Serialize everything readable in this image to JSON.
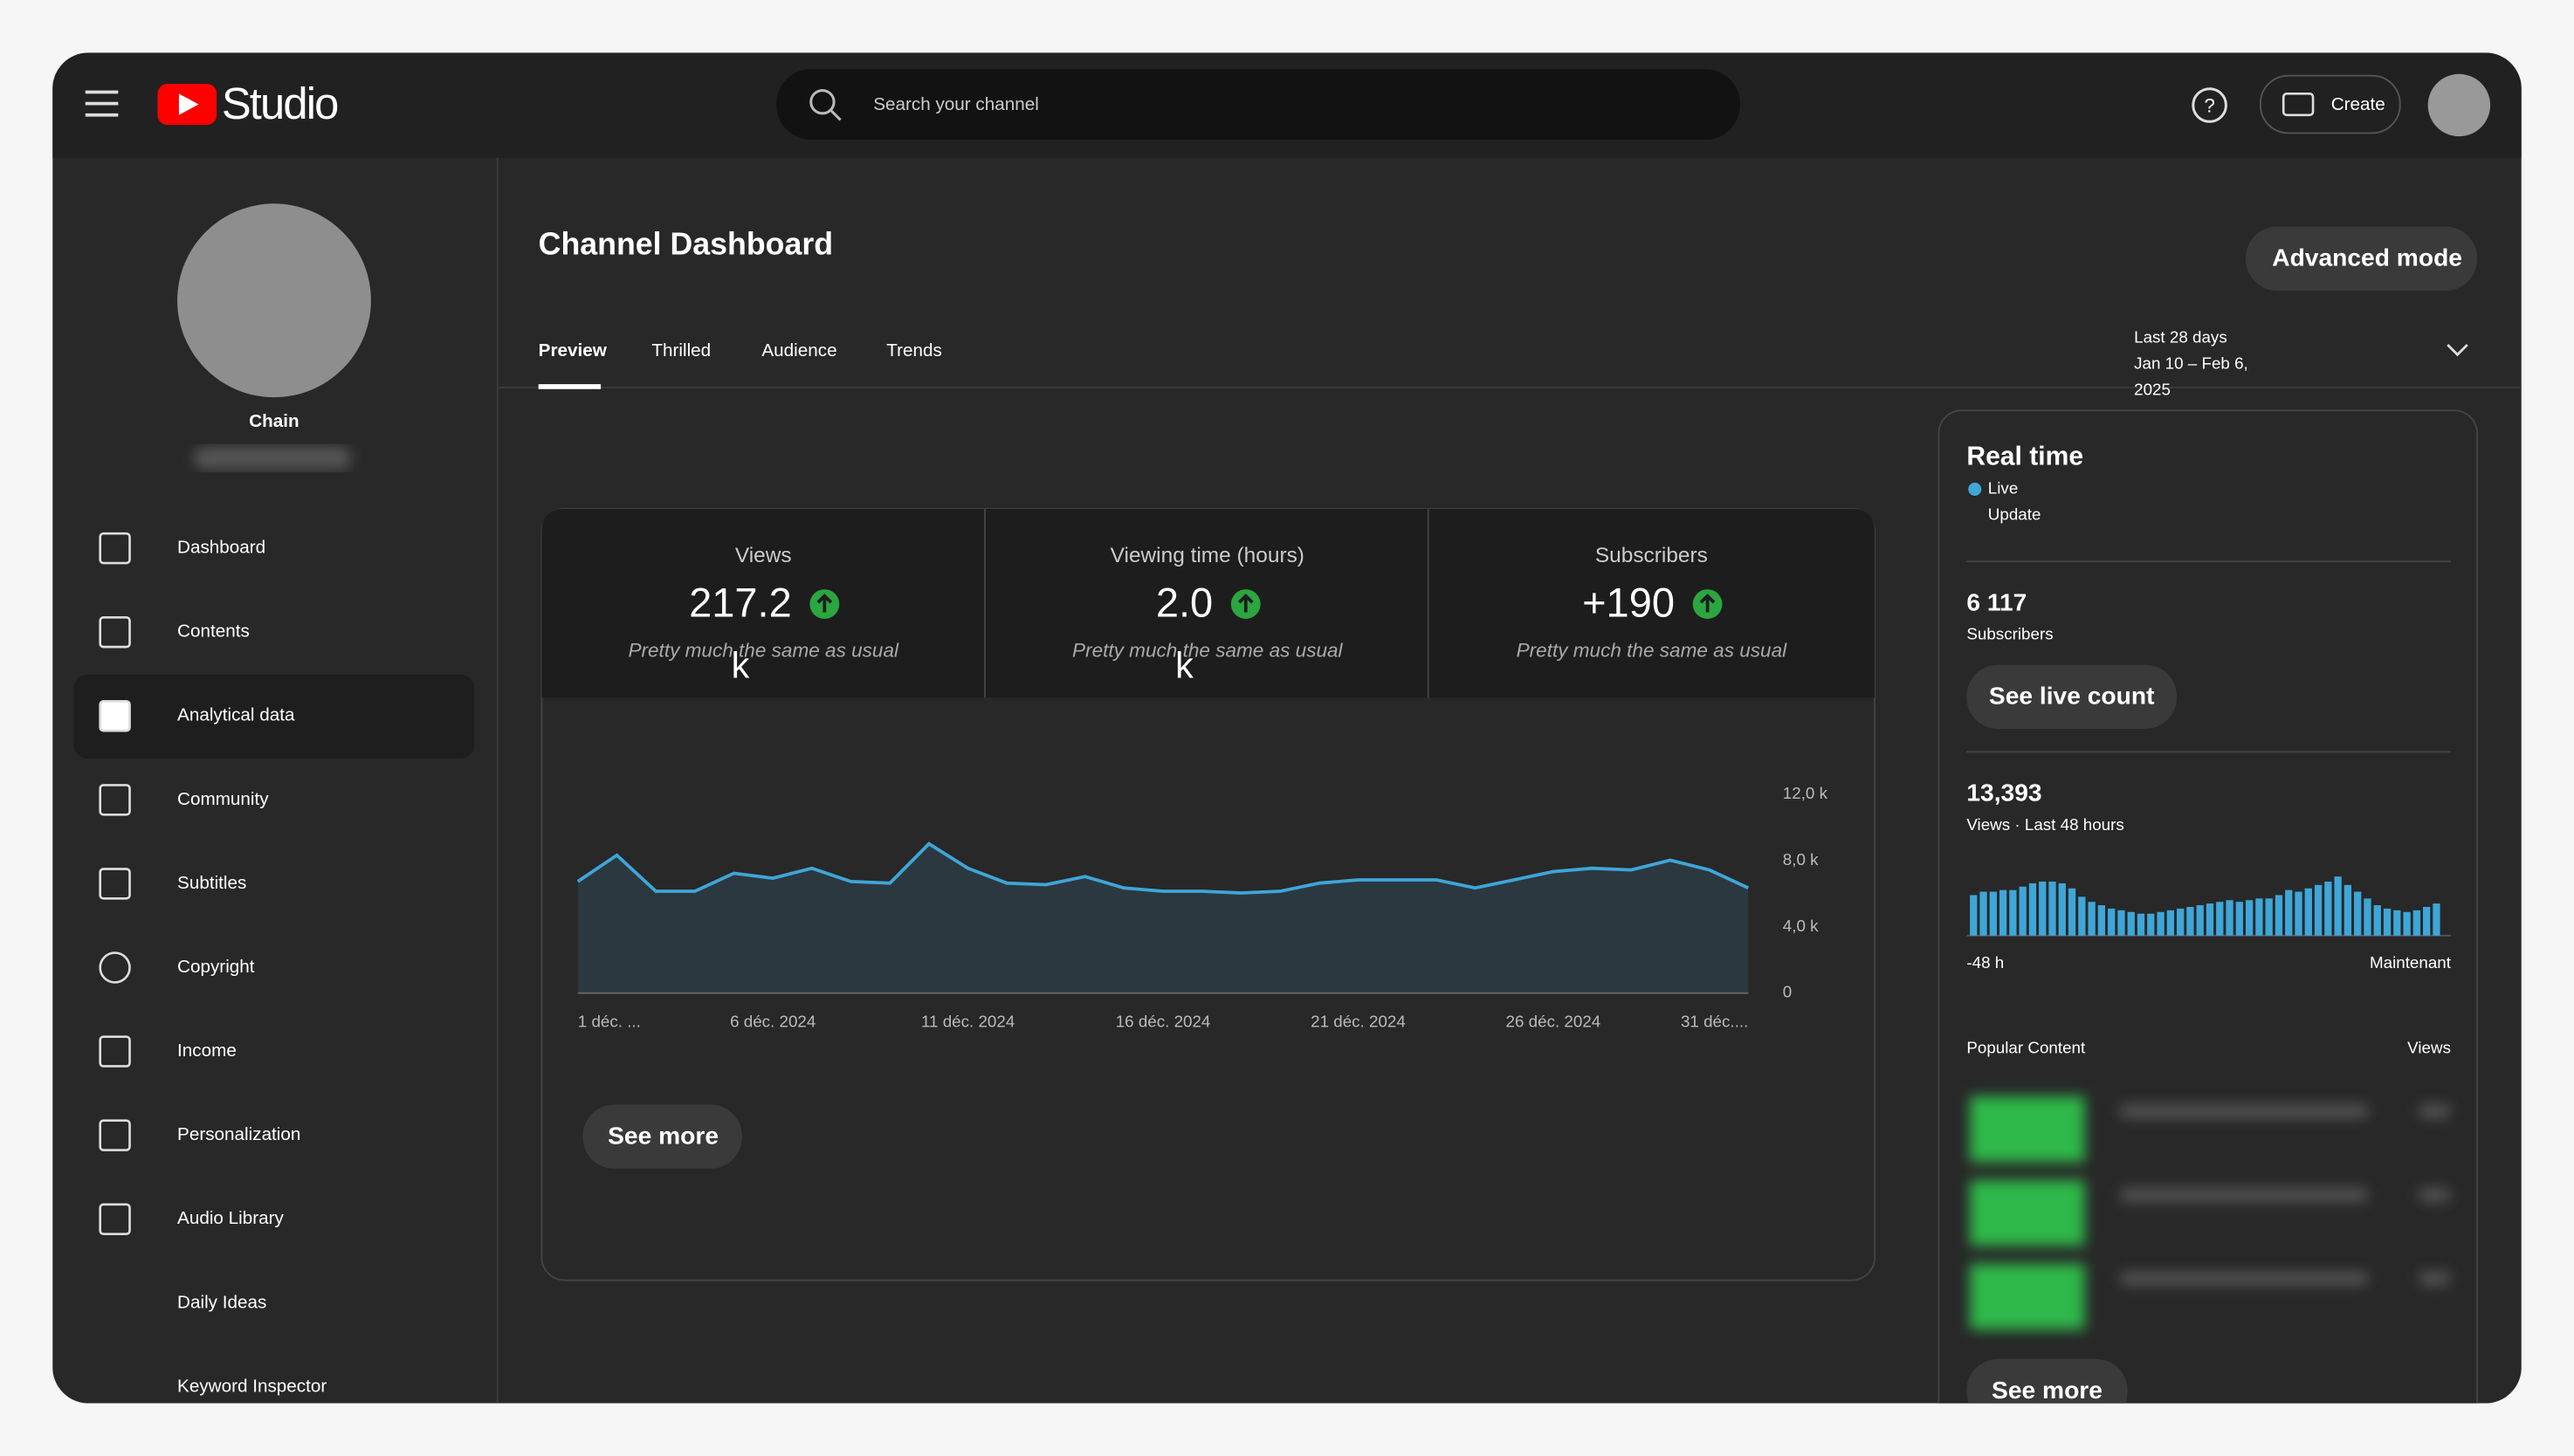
{
  "header": {
    "logo": "Studio",
    "search_placeholder": "Search your channel",
    "create": "Create"
  },
  "sidebar": {
    "channel_name": "Chain",
    "nav": [
      "Dashboard",
      "Contents",
      "Analytical data",
      "Community",
      "Subtitles",
      "Copyright",
      "Income",
      "Personalization",
      "Audio Library",
      "Daily Ideas",
      "Keyword Inspector"
    ]
  },
  "main": {
    "title": "Channel Dashboard",
    "advanced_mode": "Advanced mode",
    "tabs": [
      "Preview",
      "Thrilled",
      "Audience",
      "Trends"
    ],
    "date_range": [
      "Last 28 days",
      "Jan 10 – Feb 6,",
      "2025"
    ],
    "metrics": [
      {
        "label": "Views",
        "value": "217.2",
        "unit": "k",
        "note": "Pretty much the same as usual"
      },
      {
        "label": "Viewing time (hours)",
        "value": "2.0",
        "unit": "k",
        "note": "Pretty much the same as usual"
      },
      {
        "label": "Subscribers",
        "value": "+190",
        "note": "Pretty much the same as usual"
      }
    ],
    "see_more": "See more"
  },
  "chart_data": {
    "type": "area",
    "color": "#3ea6d8",
    "categories": [
      "1 déc. ...",
      null,
      null,
      null,
      null,
      "6 déc. 2024",
      null,
      null,
      null,
      null,
      "11 déc. 2024",
      null,
      null,
      null,
      null,
      "16 déc. 2024",
      null,
      null,
      null,
      null,
      "21 déc. 2024",
      null,
      null,
      null,
      null,
      "26 déc. 2024",
      null,
      null,
      null,
      null,
      "31 déc...."
    ],
    "values": [
      6740,
      8330,
      6150,
      6150,
      7240,
      6940,
      7540,
      6740,
      6640,
      9020,
      7540,
      6640,
      6550,
      7040,
      6350,
      6150,
      6150,
      6050,
      6150,
      6640,
      6840,
      6840,
      6840,
      6350,
      6840,
      7340,
      7540,
      7440,
      8030,
      7440,
      6350
    ],
    "ylim": [
      0,
      12000
    ],
    "yticks": [
      0,
      {
        "value": 4000,
        "label": "4,0 k"
      },
      {
        "value": 8000,
        "label": "8,0 k"
      },
      {
        "value": 12000,
        "label": "12,0 k"
      }
    ]
  },
  "realtime": {
    "title": "Real time",
    "live": "Live",
    "update": "Update",
    "subscribers_value": "6 117",
    "subscribers_label": "Subscribers",
    "see_live_count": "See live count",
    "views_value": "13,393",
    "views_label": "Views · Last 48 hours",
    "bars": [
      24,
      26,
      26,
      27,
      27,
      29,
      31,
      32,
      32,
      31,
      28,
      23,
      20,
      18,
      16,
      15,
      14,
      13,
      13,
      14,
      15,
      16,
      17,
      18,
      19,
      20,
      21,
      20,
      21,
      22,
      22,
      24,
      27,
      26,
      28,
      30,
      32,
      35,
      30,
      26,
      22,
      18,
      16,
      15,
      14,
      15,
      17,
      19
    ],
    "axis_start": "-48 h",
    "axis_end": "Maintenant",
    "popular_content": "Popular Content",
    "views_column": "Views",
    "see_more": "See more"
  }
}
